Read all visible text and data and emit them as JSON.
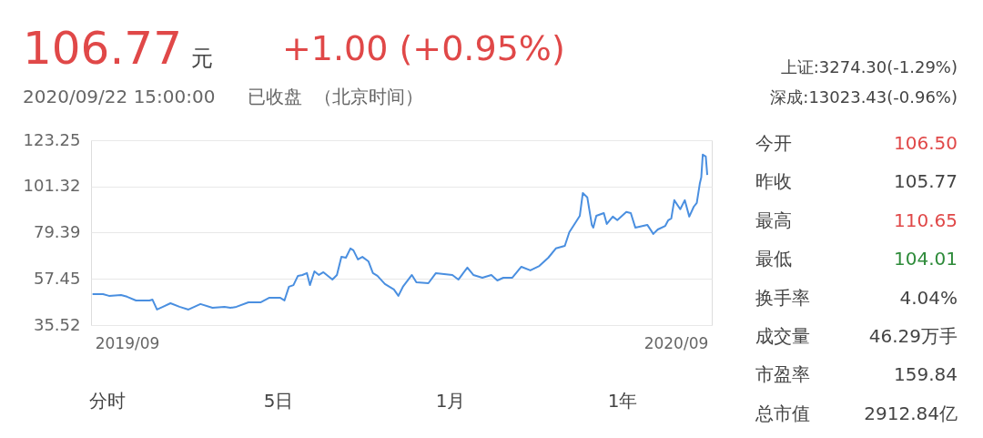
{
  "chart_data": {
    "type": "line",
    "title": "106.77",
    "subtitle": "2020/09/22 15:00:00",
    "annotations": [
      "元",
      "+1.00 (+0.95%)",
      "已收盘",
      "（北京时间）",
      "上证:3274.30(-1.29%)",
      "深成:13023.43(-0.96%)",
      "分时",
      "5日",
      "1月",
      "1年",
      "今开",
      "106.50",
      "昨收",
      "105.77",
      "最高",
      "110.65",
      "最低",
      "104.01",
      "换手率",
      "4.04%",
      "成交量",
      "46.29万手",
      "市盈率",
      "159.84",
      "总市值",
      "2912.84亿"
    ],
    "x": [
      "2019-08-09",
      "2019-08-16",
      "2019-08-20",
      "2019-08-28",
      "2019-09-01",
      "2019-09-07",
      "2019-09-16",
      "2019-09-18",
      "2019-09-21",
      "2019-09-25",
      "2019-09-30",
      "2019-10-06",
      "2019-10-12",
      "2019-10-20",
      "2019-10-28",
      "2019-11-05",
      "2019-11-09",
      "2019-11-13",
      "2019-11-21",
      "2019-11-29",
      "2019-12-05",
      "2019-12-12",
      "2019-12-15",
      "2019-12-18",
      "2019-12-21",
      "2019-12-24",
      "2019-12-27",
      "2019-12-30",
      "2020-01-01",
      "2020-01-04",
      "2020-01-07",
      "2020-01-10",
      "2020-01-16",
      "2020-01-19",
      "2020-01-22",
      "2020-01-25",
      "2020-01-28",
      "2020-01-30",
      "2020-02-02",
      "2020-02-05",
      "2020-02-09",
      "2020-02-12",
      "2020-02-15",
      "2020-02-20",
      "2020-02-26",
      "2020-02-29",
      "2020-03-03",
      "2020-03-09",
      "2020-03-12",
      "2020-03-20",
      "2020-03-25",
      "2020-04-05",
      "2020-04-09",
      "2020-04-15",
      "2020-04-19",
      "2020-04-25",
      "2020-05-01",
      "2020-05-05",
      "2020-05-09",
      "2020-05-15",
      "2020-05-21",
      "2020-05-27",
      "2020-06-02",
      "2020-06-08",
      "2020-06-13",
      "2020-06-19",
      "2020-06-22",
      "2020-06-26",
      "2020-06-29",
      "2020-07-01",
      "2020-07-04",
      "2020-07-07",
      "2020-07-08",
      "2020-07-10",
      "2020-07-15",
      "2020-07-17",
      "2020-07-21",
      "2020-07-24",
      "2020-07-30",
      "2020-08-02",
      "2020-08-05",
      "2020-08-13",
      "2020-08-17",
      "2020-08-20",
      "2020-08-25",
      "2020-08-27",
      "2020-08-29",
      "2020-08-31",
      "2020-09-04",
      "2020-09-07",
      "2020-09-10",
      "2020-09-13",
      "2020-09-15",
      "2020-09-17",
      "2020-09-18",
      "2020-09-19",
      "2020-09-21",
      "2020-09-22"
    ],
    "series": [
      {
        "color": "#4a8fe0",
        "values": [
          50.2,
          50.2,
          49.4,
          49.8,
          49.0,
          47.2,
          47.2,
          47.6,
          42.9,
          44.2,
          45.9,
          44.2,
          42.9,
          45.5,
          43.7,
          44.2,
          43.7,
          44.2,
          46.3,
          46.3,
          48.5,
          48.5,
          47.2,
          53.7,
          54.5,
          58.9,
          59.3,
          60.2,
          54.5,
          61.0,
          59.3,
          60.6,
          57.1,
          59.3,
          67.9,
          67.5,
          71.9,
          71.0,
          66.7,
          67.9,
          65.8,
          60.2,
          58.9,
          55.0,
          52.4,
          49.4,
          53.7,
          59.3,
          55.8,
          55.4,
          60.2,
          59.3,
          57.1,
          62.8,
          59.3,
          58.0,
          59.3,
          56.7,
          58.0,
          58.0,
          63.2,
          61.5,
          63.6,
          67.5,
          71.9,
          73.1,
          79.6,
          84.0,
          87.4,
          98.2,
          96.1,
          83.1,
          81.8,
          87.4,
          88.7,
          83.5,
          87.0,
          85.3,
          89.2,
          88.7,
          81.8,
          83.1,
          78.8,
          80.9,
          82.6,
          85.3,
          86.1,
          94.8,
          90.5,
          94.8,
          87.0,
          91.7,
          93.5,
          102.6,
          105.6,
          116.4,
          115.5,
          106.8
        ]
      }
    ],
    "xlim": [
      "2019-08-08",
      "2020-09-25"
    ],
    "xticks": [
      {
        "value": "2019-09-01",
        "label": "2019/09"
      },
      {
        "value": "2020-09-01",
        "label": "2020/09"
      }
    ],
    "ylim": [
      35.52,
      123.25
    ],
    "yticks": [
      35.52,
      57.45,
      79.39,
      101.32,
      123.25
    ],
    "grid": "y",
    "marker": "none",
    "line_style": "solid"
  }
}
